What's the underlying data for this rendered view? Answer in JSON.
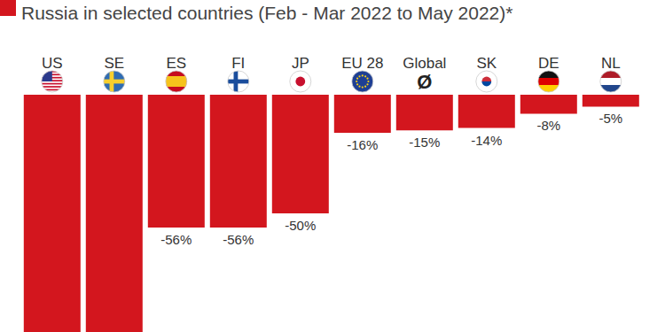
{
  "chart_data": {
    "type": "bar",
    "title": "Russia in selected countries (Feb - Mar 2022 to May 2022)*",
    "categories": [
      "US",
      "SE",
      "ES",
      "FI",
      "JP",
      "EU 28",
      "Global",
      "SK",
      "DE",
      "NL"
    ],
    "values": [
      -100,
      -100,
      -56,
      -56,
      -50,
      -16,
      -15,
      -14,
      -8,
      -5
    ],
    "value_labels": [
      null,
      null,
      "-56%",
      "-56%",
      "-50%",
      "-16%",
      "-15%",
      "-14%",
      "-8%",
      "-5%"
    ],
    "annotations": [
      {
        "x": "Global",
        "text": "Ø"
      }
    ],
    "color": "#d3161e",
    "ylim": [
      -100,
      0
    ],
    "data_labels": true,
    "tick_labels": false
  }
}
